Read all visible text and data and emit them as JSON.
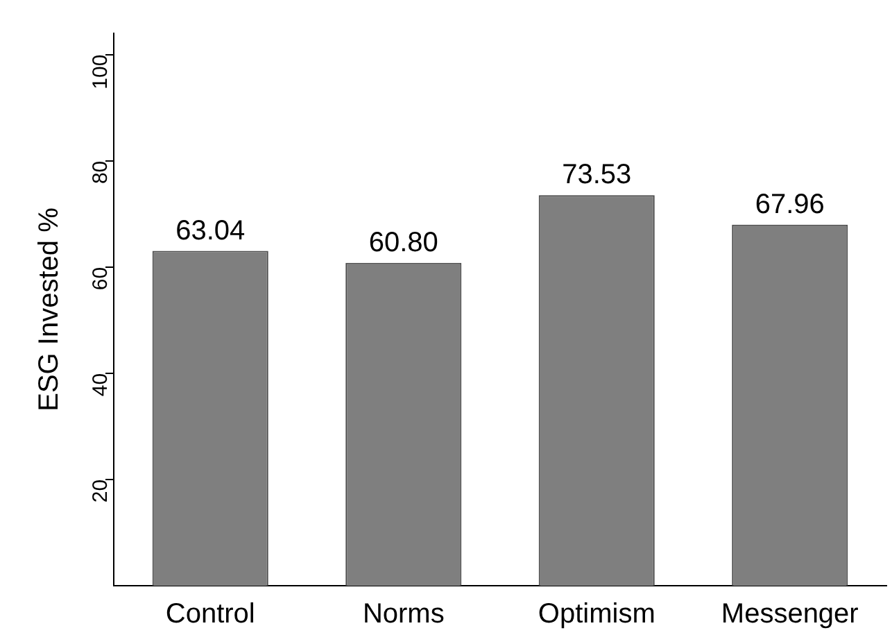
{
  "chart_data": {
    "type": "bar",
    "ylabel": "ESG Invested %",
    "categories": [
      "Control",
      "Norms",
      "Optimism",
      "Messenger"
    ],
    "values": [
      63.04,
      60.8,
      73.53,
      67.96
    ],
    "value_labels": [
      "63.04",
      "60.80",
      "73.53",
      "67.96"
    ],
    "color": "#7f7f7f",
    "ylim": [
      0,
      104
    ],
    "yticks": [
      20,
      40,
      60,
      80,
      100
    ],
    "grid": false,
    "legend": false
  }
}
